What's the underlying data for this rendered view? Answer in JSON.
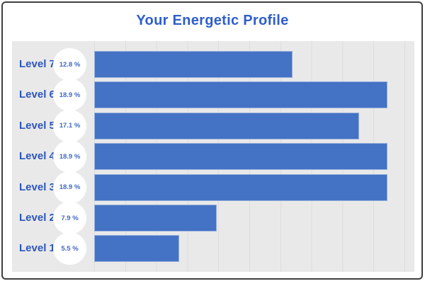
{
  "title": "Your Energetic Profile",
  "colors": {
    "accent_title": "#2e5ec9",
    "label_blue": "#2b55bd",
    "badge_text_blue": "#4169c4",
    "bar_blue": "#4472c4",
    "panel_gray": "#e9e9e9",
    "gridline_gray": "#dddddd",
    "frame_border": "#3f3f3f",
    "badge_bg": "#ffffff"
  },
  "chart_data": {
    "type": "bar",
    "orientation": "horizontal",
    "title": "Your Energetic Profile",
    "categories": [
      "Level 7",
      "Level 6",
      "Level 5",
      "Level 4",
      "Level 3",
      "Level 2",
      "Level 1"
    ],
    "values": [
      12.8,
      18.9,
      17.1,
      18.9,
      18.9,
      7.9,
      5.5
    ],
    "value_labels": [
      "12.8 %",
      "18.9 %",
      "17.1 %",
      "18.9 %",
      "18.9 %",
      "7.9 %",
      "5.5 %"
    ],
    "value_suffix": " %",
    "xlabel": "",
    "ylabel": "",
    "xlim": [
      0,
      20
    ],
    "grid": "vertical",
    "grid_interval": 2,
    "legend": "none",
    "bar_color": "#4472c4",
    "plot_background": "#e9e9e9"
  }
}
